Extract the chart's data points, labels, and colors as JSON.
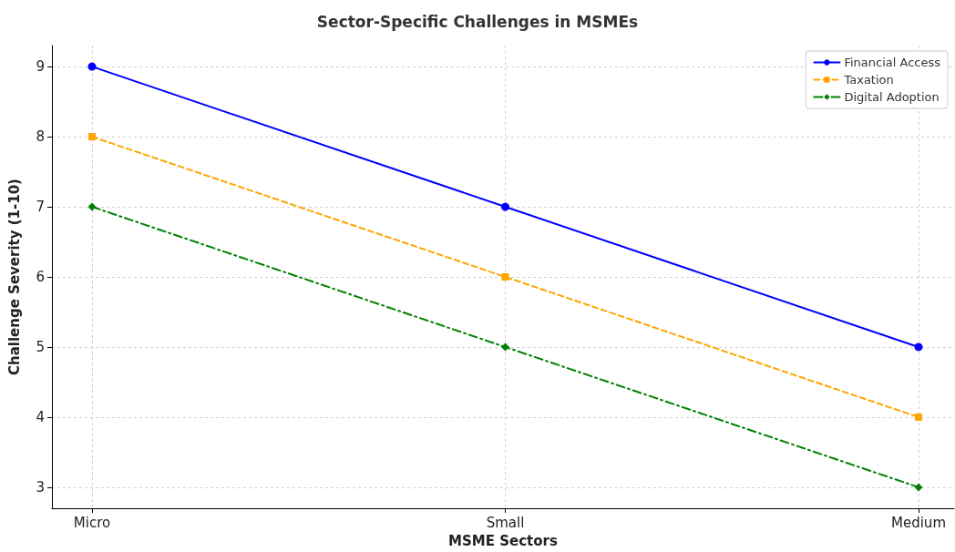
{
  "chart_data": {
    "type": "line",
    "title": "Sector-Specific Challenges in MSMEs",
    "xlabel": "MSME Sectors",
    "ylabel": "Challenge Severity (1-10)",
    "categories": [
      "Micro",
      "Small",
      "Medium"
    ],
    "series": [
      {
        "name": "Financial Access",
        "color": "#0000ff",
        "values": [
          9,
          7,
          5
        ],
        "marker": "circle",
        "line_style": "solid"
      },
      {
        "name": "Taxation",
        "color": "#ffa500",
        "values": [
          8,
          6,
          4
        ],
        "marker": "square",
        "line_style": "dashed"
      },
      {
        "name": "Digital Adoption",
        "color": "#008000",
        "values": [
          7,
          5,
          3
        ],
        "marker": "diamond",
        "line_style": "dashdot"
      }
    ],
    "ylim": [
      2.7,
      9.3
    ],
    "yticks": [
      3,
      4,
      5,
      6,
      7,
      8,
      9
    ],
    "grid": true,
    "legend": "top right"
  }
}
